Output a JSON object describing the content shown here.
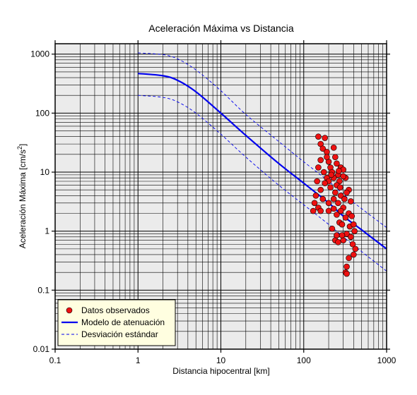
{
  "chart_data": {
    "type": "scatter",
    "title": "Aceleración Máxima vs Distancia",
    "xlabel": "Distancia hipocentral [km]",
    "ylabel_main": "Aceleración Máxima [cm/s",
    "ylabel_sup": "2",
    "ylabel_end": "]",
    "x_scale": "log",
    "y_scale": "log",
    "xlim": [
      0.1,
      1000
    ],
    "ylim": [
      0.01,
      1500
    ],
    "x_ticks": [
      {
        "value": 0.1,
        "label": "0.1"
      },
      {
        "value": 1,
        "label": "1"
      },
      {
        "value": 10,
        "label": "10"
      },
      {
        "value": 100,
        "label": "100"
      },
      {
        "value": 1000,
        "label": "1000"
      }
    ],
    "y_ticks": [
      {
        "value": 0.01,
        "label": "0.01"
      },
      {
        "value": 0.1,
        "label": "0.1"
      },
      {
        "value": 1,
        "label": "1"
      },
      {
        "value": 10,
        "label": "10"
      },
      {
        "value": 100,
        "label": "100"
      },
      {
        "value": 1000,
        "label": "1000"
      }
    ],
    "grid": true,
    "legend_position": "bottom-left",
    "colors": {
      "plot_bg": "#ebebeb",
      "grid": "#000000",
      "model": "#0000ee",
      "points": "#ee1111",
      "legend_bg": "#fffee0"
    },
    "legend": [
      {
        "name": "Datos observados",
        "marker": "circle"
      },
      {
        "name": "Modelo de atenuación",
        "marker": "solid-line"
      },
      {
        "name": "Desviación estándar",
        "marker": "dashed-line"
      }
    ],
    "series": [
      {
        "name": "Modelo de atenuación",
        "style": "solid",
        "points": [
          [
            1,
            470
          ],
          [
            2,
            430
          ],
          [
            3,
            360
          ],
          [
            5,
            230
          ],
          [
            10,
            100
          ],
          [
            20,
            42
          ],
          [
            50,
            14
          ],
          [
            100,
            6.5
          ],
          [
            200,
            3.0
          ],
          [
            300,
            1.8
          ],
          [
            500,
            1.05
          ],
          [
            1000,
            0.5
          ]
        ]
      },
      {
        "name": "Desviación estándar (superior)",
        "style": "dashed",
        "points": [
          [
            1,
            1050
          ],
          [
            2,
            980
          ],
          [
            3,
            830
          ],
          [
            5,
            540
          ],
          [
            10,
            240
          ],
          [
            20,
            95
          ],
          [
            50,
            33
          ],
          [
            100,
            15
          ],
          [
            200,
            7
          ],
          [
            300,
            4.2
          ],
          [
            500,
            2.4
          ],
          [
            1000,
            1.15
          ]
        ]
      },
      {
        "name": "Desviación estándar (inferior)",
        "style": "dashed",
        "points": [
          [
            1,
            200
          ],
          [
            2,
            185
          ],
          [
            3,
            155
          ],
          [
            5,
            100
          ],
          [
            10,
            44
          ],
          [
            20,
            18
          ],
          [
            50,
            6
          ],
          [
            100,
            2.8
          ],
          [
            200,
            1.3
          ],
          [
            300,
            0.8
          ],
          [
            500,
            0.45
          ],
          [
            1000,
            0.21
          ]
        ]
      },
      {
        "name": "Datos observados",
        "style": "markers",
        "points": [
          [
            150,
            40
          ],
          [
            180,
            38
          ],
          [
            160,
            30
          ],
          [
            170,
            25
          ],
          [
            190,
            22
          ],
          [
            230,
            26
          ],
          [
            240,
            18
          ],
          [
            160,
            16
          ],
          [
            200,
            15
          ],
          [
            210,
            12
          ],
          [
            250,
            14
          ],
          [
            280,
            12
          ],
          [
            150,
            12
          ],
          [
            175,
            10
          ],
          [
            220,
            10
          ],
          [
            260,
            9
          ],
          [
            300,
            11
          ],
          [
            190,
            8
          ],
          [
            230,
            8
          ],
          [
            270,
            7
          ],
          [
            320,
            8
          ],
          [
            145,
            7
          ],
          [
            200,
            7
          ],
          [
            250,
            6
          ],
          [
            350,
            5
          ],
          [
            160,
            5
          ],
          [
            210,
            5.5
          ],
          [
            240,
            4.5
          ],
          [
            280,
            4
          ],
          [
            310,
            3.5
          ],
          [
            330,
            4.5
          ],
          [
            140,
            4
          ],
          [
            170,
            3.5
          ],
          [
            230,
            3.5
          ],
          [
            370,
            3.2
          ],
          [
            200,
            3
          ],
          [
            260,
            3
          ],
          [
            300,
            2.5
          ],
          [
            150,
            2.5
          ],
          [
            130,
            2.2
          ],
          [
            135,
            3
          ],
          [
            160,
            2.2
          ],
          [
            200,
            2.2
          ],
          [
            230,
            2.4
          ],
          [
            280,
            2.2
          ],
          [
            350,
            2
          ],
          [
            250,
            1.9
          ],
          [
            320,
            1.7
          ],
          [
            380,
            1.8
          ],
          [
            270,
            1.4
          ],
          [
            290,
            1.3
          ],
          [
            360,
            1.2
          ],
          [
            400,
            1.3
          ],
          [
            410,
            1
          ],
          [
            220,
            1.1
          ],
          [
            330,
            0.9
          ],
          [
            370,
            0.8
          ],
          [
            240,
            0.7
          ],
          [
            260,
            0.65
          ],
          [
            300,
            0.7
          ],
          [
            390,
            0.6
          ],
          [
            250,
            0.85
          ],
          [
            420,
            0.5
          ],
          [
            400,
            0.4
          ],
          [
            350,
            0.35
          ],
          [
            330,
            0.25
          ],
          [
            320,
            0.2
          ],
          [
            330,
            0.19
          ],
          [
            290,
            0.85
          ],
          [
            180,
            6.5
          ],
          [
            275,
            5.5
          ],
          [
            190,
            18
          ],
          [
            215,
            9
          ],
          [
            265,
            10.5
          ],
          [
            300,
            8.5
          ]
        ]
      }
    ]
  }
}
